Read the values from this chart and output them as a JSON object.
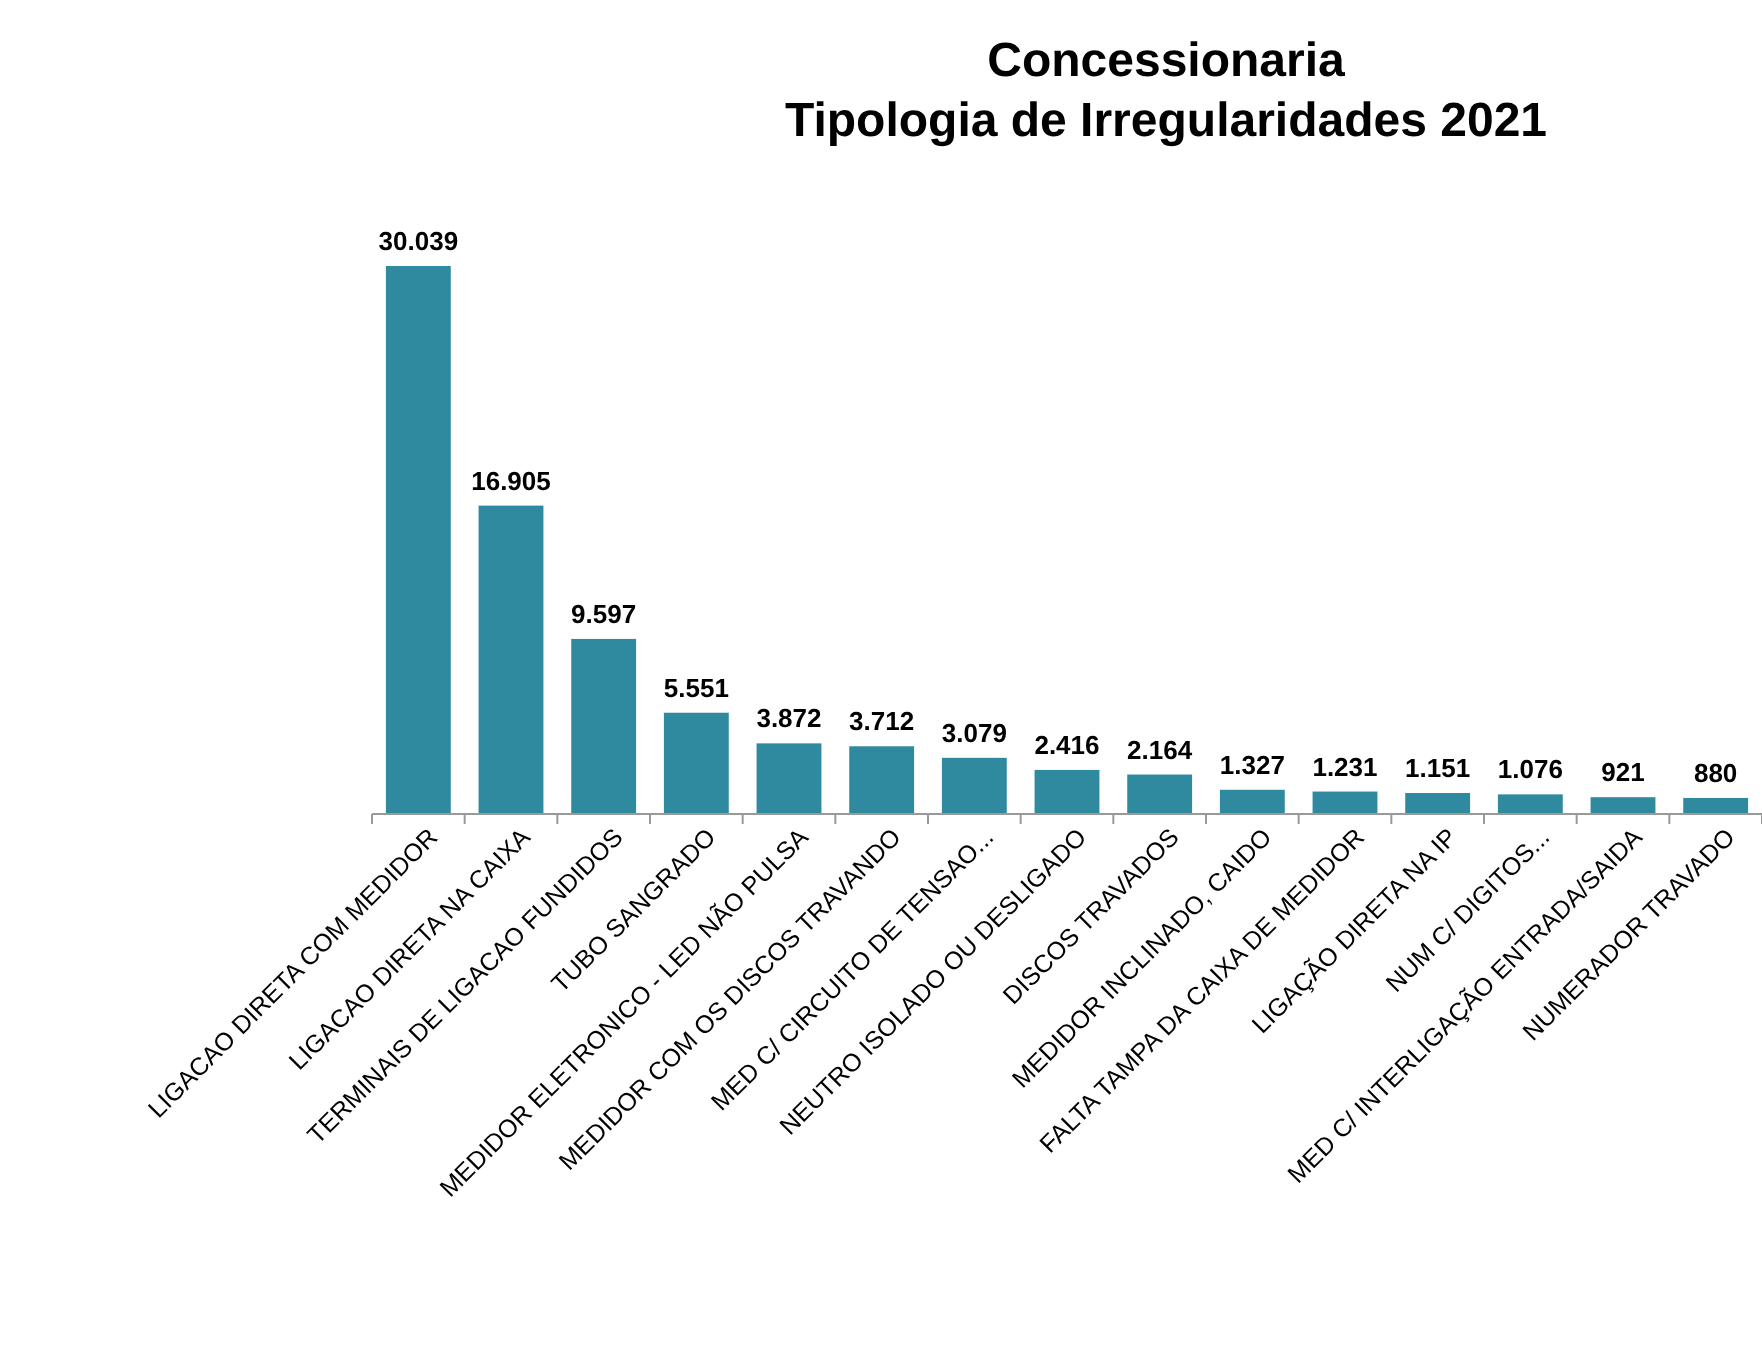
{
  "chart_data": {
    "type": "bar",
    "title": "Concessionaria\nTipologia de Irregularidades 2021",
    "categories": [
      "LIGACAO DIRETA COM MEDIDOR",
      "LIGACAO DIRETA NA CAIXA",
      "TERMINAIS DE LIGACAO FUNDIDOS",
      "TUBO SANGRADO",
      "MEDIDOR ELETRONICO - LED NÃO PULSA",
      "MEDIDOR COM OS DISCOS TRAVANDO",
      "MED C/ CIRCUITO DE TENSAO...",
      "NEUTRO ISOLADO OU DESLIGADO",
      "DISCOS TRAVADOS",
      "MEDIDOR INCLINADO, CAIDO",
      "FALTA TAMPA DA CAIXA DE MEDIDOR",
      "LIGAÇÃO DIRETA NA IP",
      "NUM C/ DIGITOS...",
      "MED C/ INTERLIGAÇÃO ENTRADA/SAIDA",
      "NUMERADOR TRAVADO"
    ],
    "values": [
      30039,
      16905,
      9597,
      5551,
      3872,
      3712,
      3079,
      2416,
      2164,
      1327,
      1231,
      1151,
      1076,
      921,
      880
    ],
    "value_labels": [
      "30.039",
      "16.905",
      "9.597",
      "5.551",
      "3.872",
      "3.712",
      "3.079",
      "2.416",
      "2.164",
      "1.327",
      "1.231",
      "1.151",
      "1.076",
      "921",
      "880"
    ],
    "color": "#2f8a9f"
  }
}
